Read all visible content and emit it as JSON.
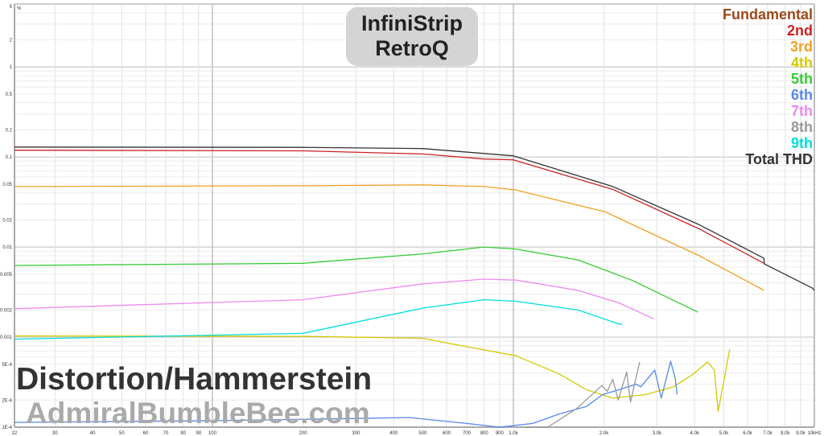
{
  "chart_data": {
    "type": "line",
    "title_lines": [
      "InfiniStrip",
      "RetroQ"
    ],
    "annotations": [
      "Distortion/Hammerstein",
      "AdmiralBumbleBee.com"
    ],
    "y_unit": "%",
    "x_scale": "log",
    "y_scale": "log",
    "xlim": [
      22,
      10000
    ],
    "ylim": [
      0.0001,
      5
    ],
    "grid": true,
    "legend_placement": "top-right",
    "x_ticks": [
      [
        22,
        "22"
      ],
      [
        30,
        "30"
      ],
      [
        40,
        "40"
      ],
      [
        50,
        "50"
      ],
      [
        60,
        "60"
      ],
      [
        70,
        "70"
      ],
      [
        80,
        "80"
      ],
      [
        90,
        "90"
      ],
      [
        100,
        "100"
      ],
      [
        200,
        "200"
      ],
      [
        300,
        "300"
      ],
      [
        400,
        "400"
      ],
      [
        500,
        "500"
      ],
      [
        600,
        "600"
      ],
      [
        700,
        "700"
      ],
      [
        800,
        "800"
      ],
      [
        900,
        "900"
      ],
      [
        1000,
        "1.0k"
      ],
      [
        2000,
        "2.0k"
      ],
      [
        3000,
        "3.0k"
      ],
      [
        4000,
        "4.0k"
      ],
      [
        5000,
        "5.0k"
      ],
      [
        6000,
        "6.0k"
      ],
      [
        7000,
        "7.0k"
      ],
      [
        8000,
        "8.0k"
      ],
      [
        9000,
        "9.0k"
      ],
      [
        10000,
        "10kHz"
      ]
    ],
    "y_ticks": [
      [
        5,
        "5"
      ],
      [
        2,
        "2"
      ],
      [
        1,
        "1"
      ],
      [
        0.5,
        "0.5"
      ],
      [
        0.2,
        "0.2"
      ],
      [
        0.1,
        "0.1"
      ],
      [
        0.05,
        "0.05"
      ],
      [
        0.02,
        "0.02"
      ],
      [
        0.01,
        "0.01"
      ],
      [
        0.005,
        "0.005"
      ],
      [
        0.002,
        "0.002"
      ],
      [
        0.001,
        "0.001"
      ],
      [
        0.0005,
        "5E-4"
      ],
      [
        0.0002,
        "2E-4"
      ],
      [
        0.0001,
        "1E-4"
      ]
    ],
    "series": [
      {
        "name": "Fundamental",
        "color": "#9a4a1a",
        "points": []
      },
      {
        "name": "2nd",
        "color": "#cc2222",
        "points": [
          [
            22,
            0.119
          ],
          [
            200,
            0.117
          ],
          [
            500,
            0.108
          ],
          [
            800,
            0.095
          ],
          [
            1000,
            0.093
          ],
          [
            2140,
            0.0436
          ],
          [
            4150,
            0.0159
          ],
          [
            6800,
            0.0066
          ]
        ]
      },
      {
        "name": "3rd",
        "color": "#f0a020",
        "points": [
          [
            22,
            0.047
          ],
          [
            200,
            0.048
          ],
          [
            500,
            0.049
          ],
          [
            800,
            0.047
          ],
          [
            1020,
            0.043
          ],
          [
            2020,
            0.0246
          ],
          [
            4150,
            0.008
          ],
          [
            6300,
            0.0038
          ],
          [
            6800,
            0.0033
          ]
        ]
      },
      {
        "name": "4th",
        "color": "#d4c800",
        "points": [
          [
            22,
            0.00103
          ],
          [
            200,
            0.00102
          ],
          [
            500,
            0.00097
          ],
          [
            624,
            0.00084
          ],
          [
            1020,
            0.00062
          ],
          [
            1420,
            0.00039
          ],
          [
            1750,
            0.00026
          ],
          [
            2140,
            0.00021
          ],
          [
            2750,
            0.00023
          ],
          [
            3400,
            0.00028
          ],
          [
            3970,
            0.00039
          ],
          [
            4420,
            0.00053
          ],
          [
            4650,
            0.00043
          ],
          [
            4790,
            0.00015
          ],
          [
            5000,
            0.00032
          ],
          [
            5230,
            0.00073
          ]
        ]
      },
      {
        "name": "5th",
        "color": "#33cc33",
        "points": [
          [
            22,
            0.00625
          ],
          [
            200,
            0.0066
          ],
          [
            500,
            0.0084
          ],
          [
            800,
            0.01
          ],
          [
            1020,
            0.0095
          ],
          [
            1640,
            0.0072
          ],
          [
            2470,
            0.0043
          ],
          [
            4100,
            0.0019
          ]
        ]
      },
      {
        "name": "6th",
        "color": "#5588ee",
        "points": [
          [
            22,
            0.000113
          ],
          [
            100,
            0.000118
          ],
          [
            300,
            0.000125
          ],
          [
            450,
            0.000128
          ],
          [
            700,
            0.00011
          ],
          [
            900,
            0.0001
          ],
          [
            1160,
            0.00011
          ],
          [
            1420,
            0.00014
          ],
          [
            1750,
            0.00017
          ],
          [
            1980,
            0.00023
          ],
          [
            2240,
            0.00026
          ],
          [
            2560,
            0.0003
          ],
          [
            2650,
            0.00028
          ],
          [
            2950,
            0.00043
          ],
          [
            3100,
            0.00021
          ],
          [
            3330,
            0.00054
          ],
          [
            3450,
            0.00035
          ],
          [
            3500,
            0.00023
          ]
        ]
      },
      {
        "name": "7th",
        "color": "#ee88ee",
        "points": [
          [
            22,
            0.00207
          ],
          [
            200,
            0.0026
          ],
          [
            500,
            0.0039
          ],
          [
            800,
            0.0044
          ],
          [
            1020,
            0.0043
          ],
          [
            1640,
            0.0033
          ],
          [
            2240,
            0.0024
          ],
          [
            2920,
            0.0016
          ]
        ]
      },
      {
        "name": "8th",
        "color": "#999999",
        "points": [
          [
            1100,
            0.0001
          ],
          [
            1300,
            0.0001
          ],
          [
            1620,
            0.00016
          ],
          [
            1970,
            0.00029
          ],
          [
            2050,
            0.00025
          ],
          [
            2140,
            0.00034
          ],
          [
            2230,
            0.0002
          ],
          [
            2380,
            0.00041
          ],
          [
            2450,
            0.00019
          ],
          [
            2630,
            0.00053
          ]
        ]
      },
      {
        "name": "9th",
        "color": "#00dddd",
        "points": [
          [
            22,
            0.00095
          ],
          [
            200,
            0.0011
          ],
          [
            500,
            0.0021
          ],
          [
            800,
            0.0026
          ],
          [
            1020,
            0.0025
          ],
          [
            1640,
            0.002
          ],
          [
            2240,
            0.0014
          ],
          [
            2300,
            0.0014
          ]
        ]
      },
      {
        "name": "Total THD",
        "color": "#333333",
        "points": [
          [
            22,
            0.129
          ],
          [
            200,
            0.128
          ],
          [
            500,
            0.124
          ],
          [
            1000,
            0.103
          ],
          [
            2140,
            0.047
          ],
          [
            4150,
            0.0177
          ],
          [
            6800,
            0.0075
          ],
          [
            6820,
            0.0065
          ],
          [
            9860,
            0.0035
          ],
          [
            10000,
            0.0033
          ]
        ]
      }
    ]
  }
}
